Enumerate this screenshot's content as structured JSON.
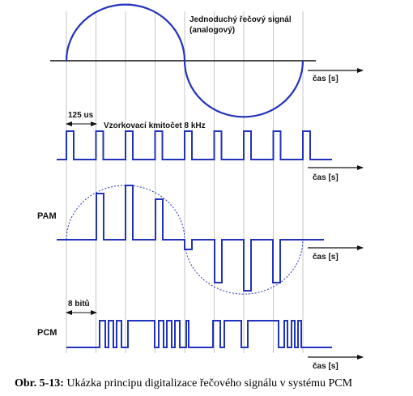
{
  "colors": {
    "signal": "#2233bb",
    "axis": "#111111",
    "guide": "#b8b8b8",
    "background": "#ffffff"
  },
  "analog": {
    "label_line1": "Jednoduchý řečový signál",
    "label_line2": "(analogový)",
    "axis_label": "čas [s]"
  },
  "sampling": {
    "period_label": "125 us",
    "freq_label": "Vzorkovací kmitočet 8 kHz",
    "axis_label": "čas [s]",
    "pulses": 9
  },
  "pam": {
    "name": "PAM",
    "axis_label": "čas [s]",
    "pulses": 8
  },
  "pcm": {
    "name": "PCM",
    "bits_label": "8 bitů",
    "axis_label": "čas [s]"
  },
  "caption": {
    "number": "Obr. 5-13:",
    "text": " Ukázka principu digitalizace řečového signálu v systému PCM"
  }
}
